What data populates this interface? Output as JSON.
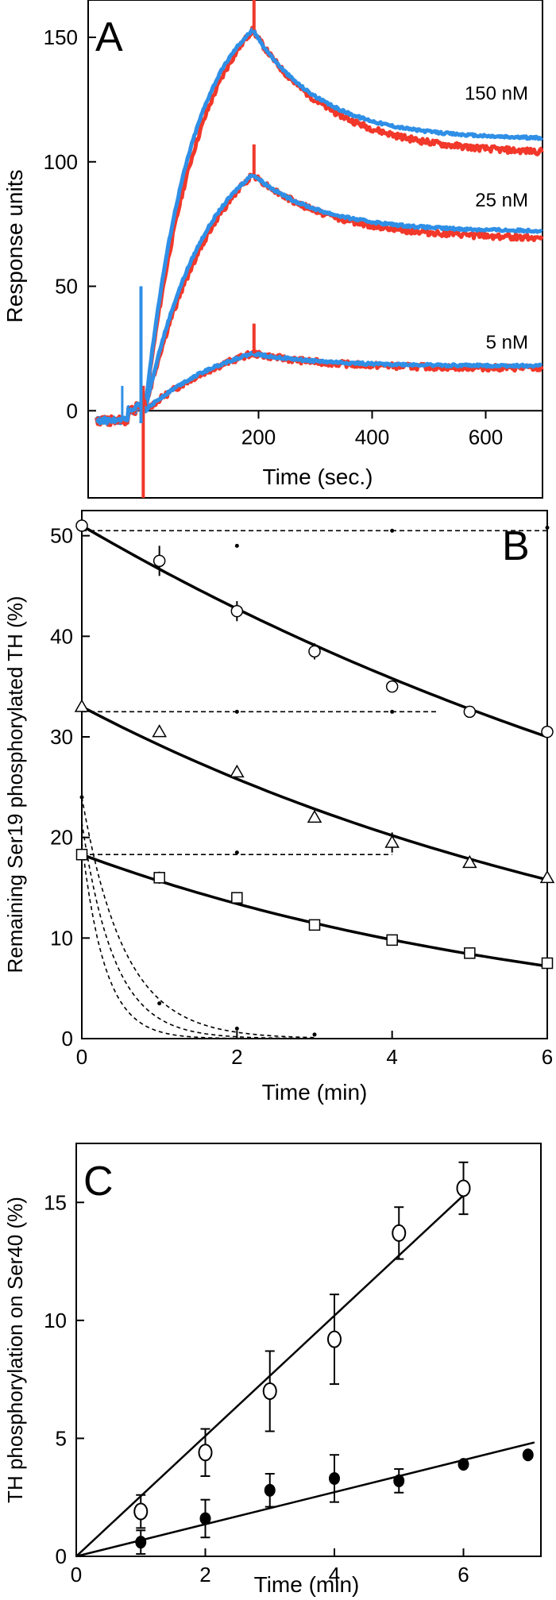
{
  "chart_data": [
    {
      "panel": "A",
      "type": "line",
      "xlabel": "Time (sec.)",
      "ylabel": "Response units",
      "xlim": [
        -100,
        700
      ],
      "ylim": [
        -35,
        165
      ],
      "xticks": [
        200,
        400,
        600
      ],
      "yticks": [
        0,
        50,
        100,
        150
      ],
      "grid": false,
      "colors": {
        "red": "#f1382a",
        "blue": "#2f8fe6"
      },
      "series": [
        {
          "name": "150 nM",
          "label_y": 125,
          "peak": 153,
          "end_red": 103,
          "end_blue": 109
        },
        {
          "name": "25 nM",
          "label_y": 82,
          "peak": 95,
          "end_red": 69,
          "end_blue": 72
        },
        {
          "name": "5 nM",
          "label_y": 25,
          "peak": 23,
          "end_red": 17,
          "end_blue": 18
        }
      ]
    },
    {
      "panel": "B",
      "type": "line",
      "xlabel": "Time (min)",
      "ylabel": "Remaining Ser19 phosphorylated TH (%)",
      "xlim": [
        0,
        6
      ],
      "ylim": [
        0,
        52.5
      ],
      "xticks": [
        0,
        2,
        4,
        6
      ],
      "yticks": [
        0,
        10,
        20,
        30,
        40,
        50
      ],
      "grid": false,
      "series": [
        {
          "marker": "circle",
          "x": [
            0,
            1,
            2,
            3,
            4,
            5,
            6
          ],
          "y": [
            51,
            47.5,
            42.5,
            38.5,
            35,
            32.5,
            30.5
          ],
          "err": [
            0,
            1.5,
            1,
            0.8,
            0.5,
            0,
            0
          ],
          "fit_start": 51,
          "fit_end": 30,
          "baseline": 50.5,
          "baseline_to": 6
        },
        {
          "marker": "triangle",
          "x": [
            0,
            1,
            2,
            3,
            4,
            5,
            6
          ],
          "y": [
            33,
            30.5,
            26.5,
            22,
            19.5,
            17.5,
            16
          ],
          "err": [
            0,
            0,
            0,
            0.5,
            1,
            0,
            0
          ],
          "fit_start": 33,
          "fit_end": 15.8,
          "baseline": 32.5,
          "baseline_to": 4.6
        },
        {
          "marker": "square",
          "x": [
            0,
            1,
            2,
            3,
            4,
            5,
            6
          ],
          "y": [
            18.3,
            16,
            14,
            11.3,
            9.8,
            8.5,
            7.5
          ],
          "err": [
            0,
            0.6,
            0,
            0,
            0,
            0,
            0
          ],
          "fit_start": 18.3,
          "fit_end": 7.2,
          "baseline": 18.3,
          "baseline_to": 4
        }
      ],
      "decays": [
        {
          "start": 24,
          "tau": 0.55
        },
        {
          "start": 21.5,
          "tau": 0.42
        },
        {
          "start": 19.5,
          "tau": 0.3
        }
      ]
    },
    {
      "panel": "C",
      "type": "scatter",
      "xlabel": "Time (min)",
      "ylabel": "TH phosphorylation on Ser40 (%)",
      "xlim": [
        0,
        7.2
      ],
      "ylim": [
        0,
        17.5
      ],
      "xticks": [
        0,
        2,
        4,
        6
      ],
      "yticks": [
        0,
        5,
        10,
        15
      ],
      "grid": false,
      "series": [
        {
          "marker": "open-circle",
          "x": [
            1,
            2,
            3,
            4,
            5,
            6
          ],
          "y": [
            1.9,
            4.4,
            7.0,
            9.2,
            13.7,
            15.6
          ],
          "err": [
            0.7,
            1.0,
            1.7,
            1.9,
            1.1,
            1.1
          ],
          "fit_slope": 2.55
        },
        {
          "marker": "filled-circle",
          "x": [
            1,
            2,
            3,
            4,
            5,
            6,
            7
          ],
          "y": [
            0.6,
            1.6,
            2.8,
            3.3,
            3.2,
            3.9,
            4.3
          ],
          "err": [
            0.5,
            0.8,
            0.7,
            1.0,
            0.5,
            0,
            0
          ],
          "fit_slope": 0.68
        }
      ]
    }
  ]
}
